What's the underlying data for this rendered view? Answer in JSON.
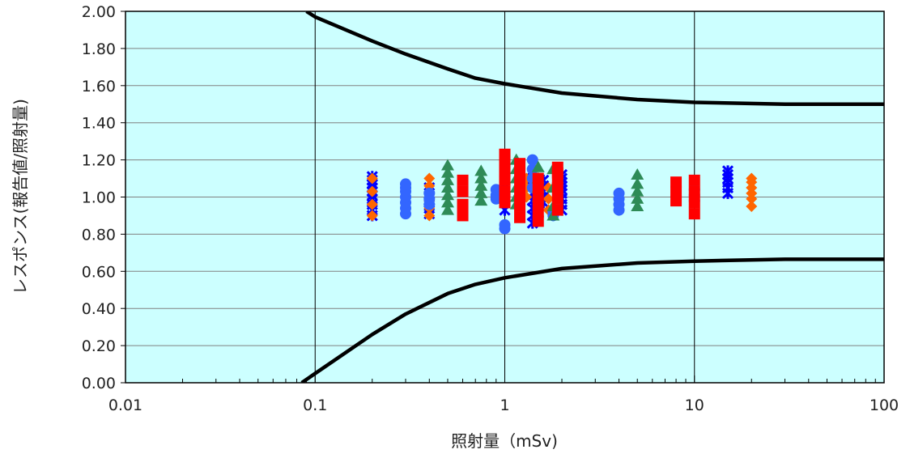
{
  "chart_data": {
    "type": "scatter",
    "xlabel": "照射量（mSv)",
    "ylabel": "レスポンス(報告値/照射量)",
    "x_scale": "log",
    "xlim": [
      0.01,
      100
    ],
    "ylim": [
      0,
      2
    ],
    "x_ticks": [
      "0.01",
      "0.1",
      "1",
      "10",
      "100"
    ],
    "y_ticks": [
      "0.00",
      "0.20",
      "0.40",
      "0.60",
      "0.80",
      "1.00",
      "1.20",
      "1.40",
      "1.60",
      "1.80",
      "2.00"
    ],
    "grid": true,
    "plot_background": "#ccffff",
    "limit_curves": {
      "color": "#000000",
      "upper": [
        [
          0.09,
          2.0
        ],
        [
          0.1,
          1.97
        ],
        [
          0.2,
          1.84
        ],
        [
          0.3,
          1.77
        ],
        [
          0.5,
          1.69
        ],
        [
          0.7,
          1.64
        ],
        [
          1,
          1.61
        ],
        [
          2,
          1.56
        ],
        [
          5,
          1.525
        ],
        [
          10,
          1.51
        ],
        [
          30,
          1.5
        ],
        [
          100,
          1.5
        ]
      ],
      "lower": [
        [
          0.085,
          0.0
        ],
        [
          0.1,
          0.05
        ],
        [
          0.2,
          0.26
        ],
        [
          0.3,
          0.37
        ],
        [
          0.5,
          0.48
        ],
        [
          0.7,
          0.53
        ],
        [
          1,
          0.565
        ],
        [
          2,
          0.615
        ],
        [
          5,
          0.645
        ],
        [
          10,
          0.655
        ],
        [
          30,
          0.665
        ],
        [
          100,
          0.665
        ]
      ]
    },
    "series": [
      {
        "marker": "x",
        "color": "#0000ff",
        "x": [
          0.2,
          0.2,
          0.2,
          0.2,
          0.2,
          0.2,
          0.2,
          0.2,
          0.2,
          0.2,
          0.4,
          0.4,
          0.4,
          0.4,
          0.4,
          0.4,
          1.0,
          1.0,
          1.0,
          1.0,
          1.0,
          1.0,
          1.0,
          1.0,
          1.4,
          1.4,
          1.4,
          1.4,
          1.4,
          1.4,
          1.4,
          1.4,
          1.6,
          1.6,
          1.6,
          1.6,
          1.6,
          2.0,
          2.0,
          2.0,
          2.0,
          2.0,
          2.0,
          2.0,
          2.0,
          2.0,
          15,
          15,
          15,
          15,
          15,
          15
        ],
        "y": [
          0.9,
          0.93,
          0.96,
          0.99,
          1.01,
          1.03,
          1.05,
          1.07,
          1.09,
          1.11,
          0.91,
          0.94,
          0.97,
          1.0,
          1.02,
          1.05,
          0.93,
          0.97,
          1.01,
          1.05,
          1.09,
          1.13,
          1.16,
          1.19,
          0.86,
          0.9,
          0.94,
          0.98,
          1.02,
          1.06,
          1.1,
          1.13,
          0.97,
          1.0,
          1.03,
          1.06,
          1.09,
          0.93,
          0.96,
          0.99,
          1.02,
          1.04,
          1.06,
          1.08,
          1.1,
          1.12,
          1.02,
          1.05,
          1.08,
          1.1,
          1.12,
          1.14
        ]
      },
      {
        "marker": "diamond",
        "color": "#ff6600",
        "x": [
          0.2,
          0.2,
          0.2,
          0.2,
          0.4,
          0.4,
          0.4,
          0.4,
          0.4,
          0.4,
          1.3,
          1.3,
          1.3,
          1.7,
          1.7,
          1.7,
          20,
          20,
          20,
          20,
          20,
          20
        ],
        "y": [
          0.9,
          0.96,
          1.03,
          1.1,
          0.9,
          0.94,
          0.98,
          1.02,
          1.06,
          1.1,
          1.0,
          1.05,
          1.1,
          0.93,
          0.99,
          1.05,
          0.95,
          0.99,
          1.02,
          1.05,
          1.08,
          1.1
        ]
      },
      {
        "marker": "circle",
        "color": "#3366ff",
        "x": [
          0.3,
          0.3,
          0.3,
          0.3,
          0.3,
          0.3,
          0.3,
          0.4,
          0.4,
          0.4,
          0.9,
          0.9,
          0.9,
          1.0,
          1.0,
          1.0,
          1.0,
          1.4,
          1.4,
          1.4,
          1.4,
          1.8,
          1.8,
          4.0,
          4.0,
          4.0,
          4.0,
          10,
          10,
          10
        ],
        "y": [
          0.91,
          0.94,
          0.97,
          1.0,
          1.03,
          1.05,
          1.07,
          0.96,
          0.99,
          1.02,
          0.99,
          1.01,
          1.04,
          0.83,
          0.85,
          1.0,
          1.03,
          1.05,
          1.1,
          1.15,
          1.2,
          0.9,
          0.92,
          0.93,
          0.96,
          0.99,
          1.02,
          0.98,
          1.01,
          1.04
        ]
      },
      {
        "marker": "triangle",
        "color": "#2e8b57",
        "x": [
          0.5,
          0.5,
          0.5,
          0.5,
          0.5,
          0.5,
          0.5,
          0.75,
          0.75,
          0.75,
          0.75,
          0.75,
          1.15,
          1.15,
          1.15,
          1.15,
          1.15,
          1.15,
          1.5,
          1.5,
          1.5,
          1.5,
          1.8,
          1.8,
          1.8,
          1.8,
          5.0,
          5.0,
          5.0,
          5.0,
          5.0
        ],
        "y": [
          0.93,
          0.97,
          1.01,
          1.05,
          1.09,
          1.13,
          1.17,
          0.98,
          1.02,
          1.06,
          1.1,
          1.14,
          0.96,
          1.0,
          1.05,
          1.1,
          1.15,
          1.2,
          1.0,
          1.05,
          1.1,
          1.16,
          0.9,
          0.95,
          1.05,
          1.15,
          0.95,
          0.99,
          1.03,
          1.07,
          1.12
        ]
      },
      {
        "marker": "square",
        "color": "#ff0000",
        "x": [
          0.6,
          0.6,
          0.6,
          0.6,
          1.0,
          1.0,
          1.0,
          1.0,
          1.0,
          1.0,
          1.2,
          1.2,
          1.2,
          1.2,
          1.2,
          1.2,
          1.5,
          1.5,
          1.5,
          1.5,
          1.5,
          1.9,
          1.9,
          1.9,
          1.9,
          1.9,
          1.9,
          8.0,
          8.0,
          8.0,
          10,
          10,
          10,
          10
        ],
        "y": [
          0.9,
          0.96,
          1.03,
          1.09,
          0.97,
          1.03,
          1.09,
          1.15,
          1.2,
          1.23,
          0.89,
          0.95,
          1.01,
          1.07,
          1.13,
          1.18,
          0.87,
          0.92,
          0.98,
          1.04,
          1.1,
          0.93,
          0.99,
          1.05,
          1.1,
          1.13,
          1.16,
          0.98,
          1.03,
          1.08,
          0.91,
          0.97,
          1.03,
          1.09
        ]
      }
    ]
  }
}
